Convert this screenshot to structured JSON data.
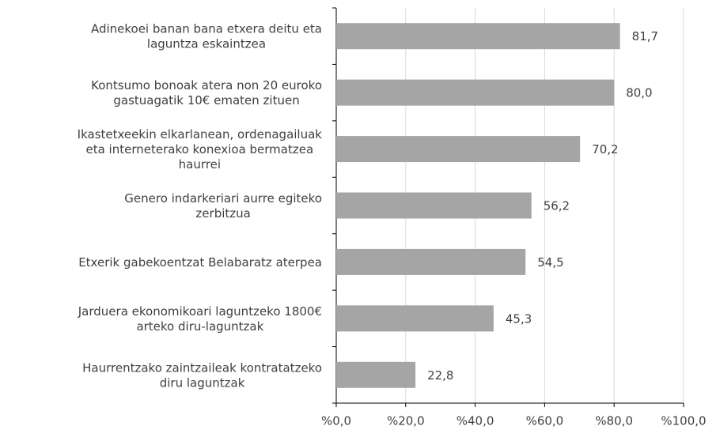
{
  "chart_data": {
    "type": "bar",
    "orientation": "horizontal",
    "categories": [
      [
        "Adinekoei banan bana etxera deitu eta",
        "laguntza eskaintzea"
      ],
      [
        "Kontsumo bonoak atera non 20 euroko",
        "gastuagatik 10€ ematen zituen"
      ],
      [
        "Ikastetxeekin elkarlanean, ordenagailuak",
        "eta interneterako konexioa bermatzea",
        "haurrei"
      ],
      [
        "Genero indarkeriari aurre egiteko",
        "zerbitzua"
      ],
      [
        "Etxerik gabekoentzat Belabaratz aterpea"
      ],
      [
        "Jarduera ekonomikoari laguntzeko 1800€",
        "arteko diru-laguntzak"
      ],
      [
        "Haurrentzako zaintzaileak kontratatzeko",
        "diru laguntzak"
      ]
    ],
    "values": [
      81.7,
      80.0,
      70.2,
      56.2,
      54.5,
      45.3,
      22.8
    ],
    "value_labels": [
      "81,7",
      "80,0",
      "70,2",
      "56,2",
      "54,5",
      "45,3",
      "22,8"
    ],
    "color": "#a5a5a5",
    "xlim": [
      0,
      100
    ],
    "xticks": [
      {
        "value": 0,
        "label": "%0,0"
      },
      {
        "value": 20,
        "label": "%20,0"
      },
      {
        "value": 40,
        "label": "%40,0"
      },
      {
        "value": 60,
        "label": "%60,0"
      },
      {
        "value": 80,
        "label": "%80,0"
      },
      {
        "value": 100,
        "label": "%100,0"
      }
    ],
    "grid": true
  }
}
